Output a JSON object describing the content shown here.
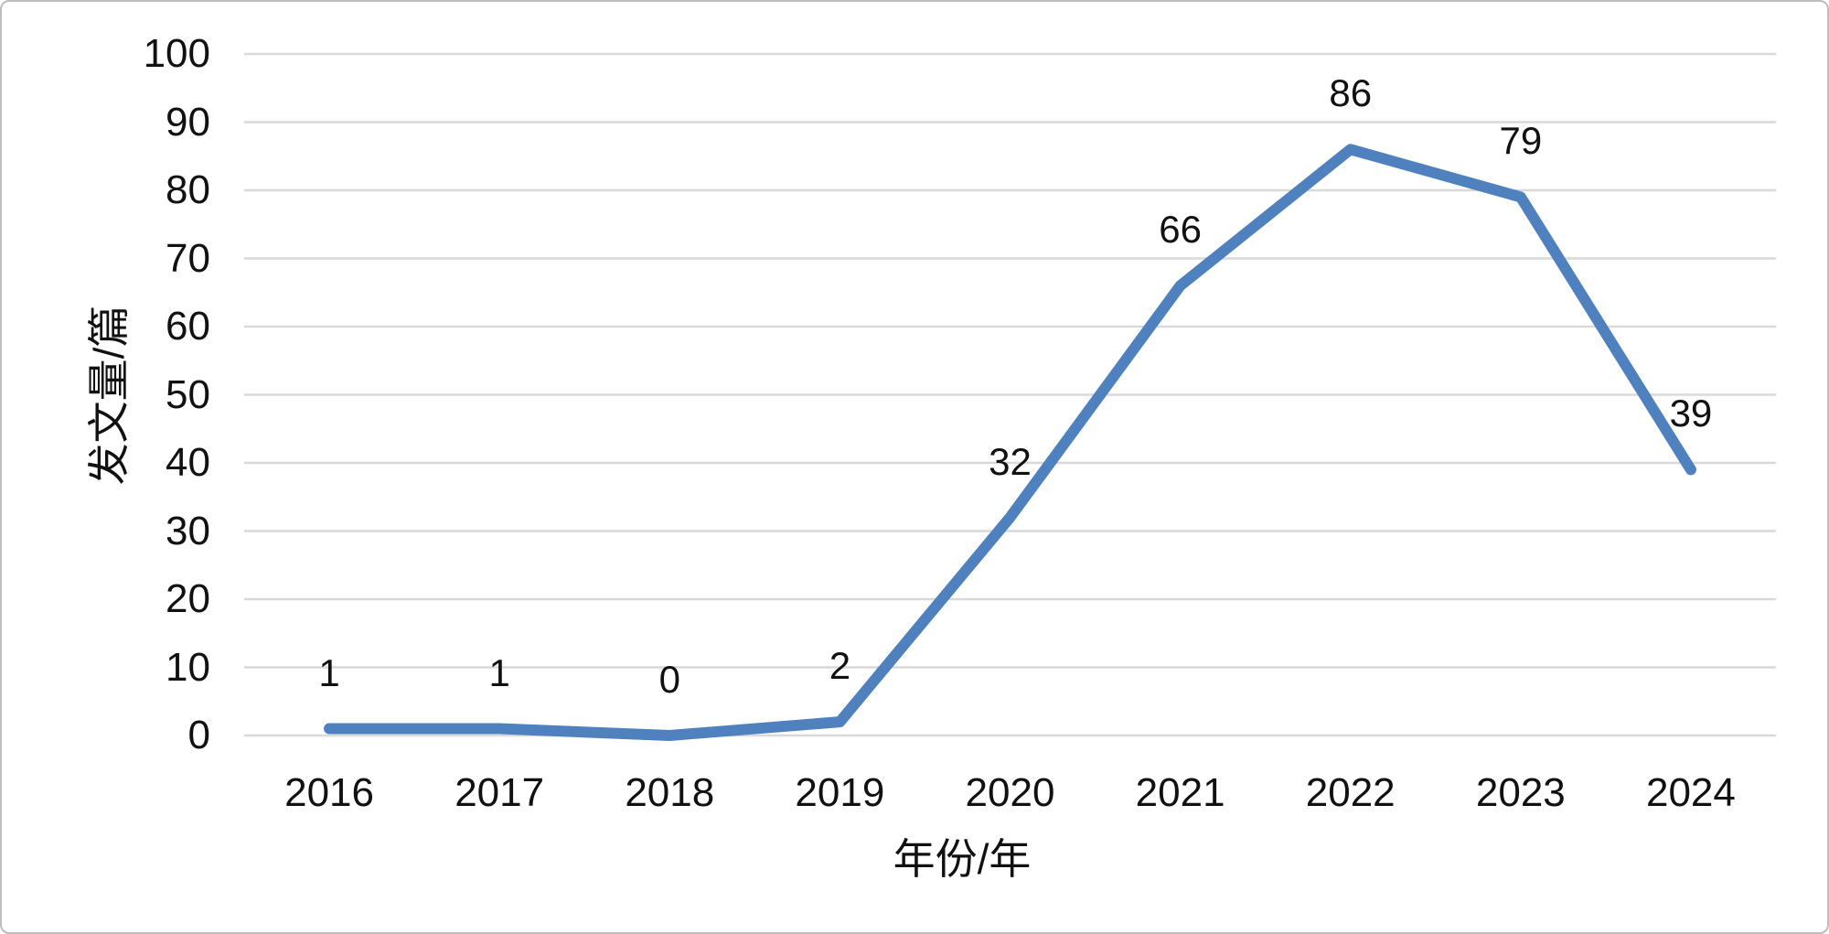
{
  "chart_data": {
    "type": "line",
    "categories": [
      "2016",
      "2017",
      "2018",
      "2019",
      "2020",
      "2021",
      "2022",
      "2023",
      "2024"
    ],
    "values": [
      1,
      1,
      0,
      2,
      32,
      66,
      86,
      79,
      39
    ],
    "title": "",
    "xlabel": "年份/年",
    "ylabel": "发文量/篇",
    "ylim": [
      0,
      100
    ],
    "ytick_step": 10,
    "grid": true,
    "legend": false,
    "data_labels": true,
    "data_label_position": "above",
    "colors": {
      "line": "#4E81BD",
      "gridline": "#D9D9D9",
      "text": "#111111",
      "background": "#FFFFFF",
      "frame_border": "#BDBDBD"
    }
  }
}
